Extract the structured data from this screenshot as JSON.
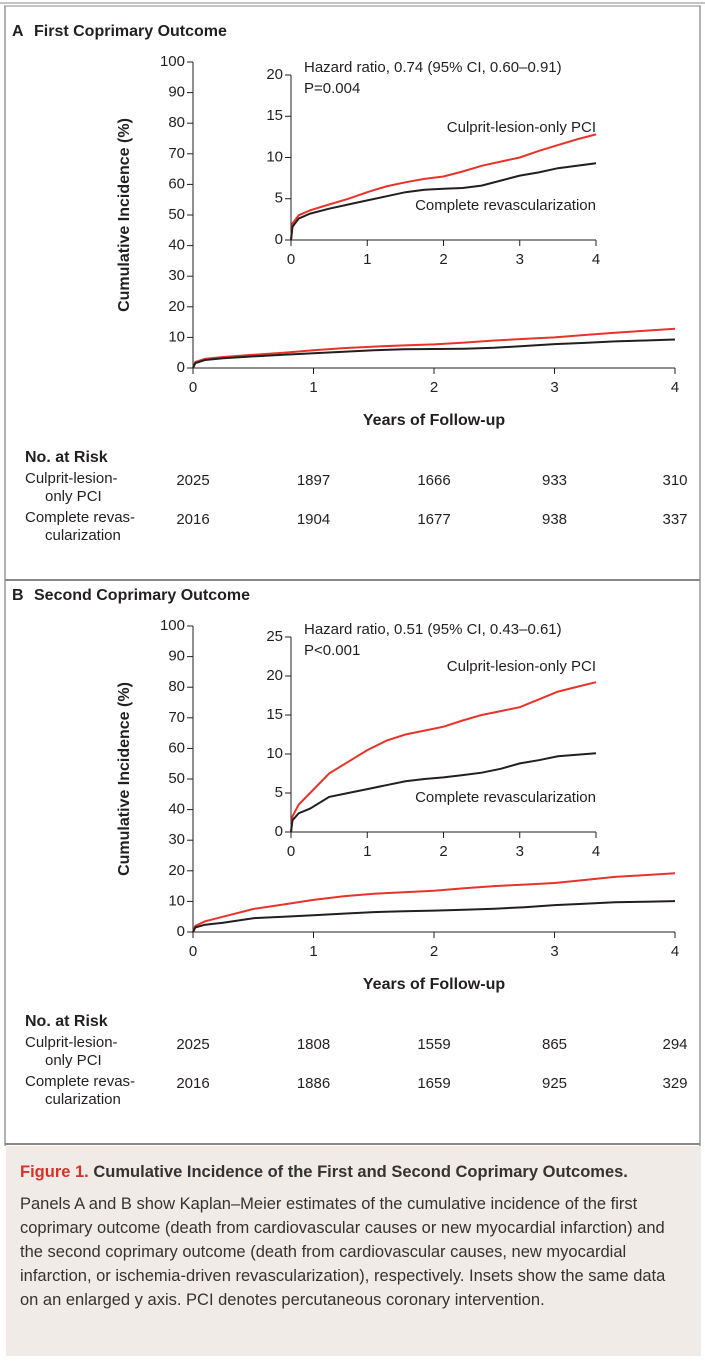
{
  "chart_data": [
    {
      "type": "line",
      "panel": "A",
      "title": "First Coprimary Outcome",
      "y_label": "Cumulative Incidence (%)",
      "x_label": "Years of Follow-up",
      "x": [
        0,
        0.02,
        0.1,
        0.25,
        0.5,
        0.75,
        1,
        1.25,
        1.5,
        1.75,
        2,
        2.25,
        2.5,
        2.75,
        3,
        3.25,
        3.5,
        3.75,
        4
      ],
      "series": [
        {
          "color": "#e8332a",
          "values": [
            0,
            2.0,
            3.0,
            3.6,
            4.3,
            5.0,
            5.8,
            6.5,
            7.0,
            7.4,
            7.7,
            8.3,
            9.0,
            9.5,
            10.0,
            10.8,
            11.5,
            12.2,
            12.8
          ]
        },
        {
          "color": "#231f20",
          "values": [
            0,
            1.6,
            2.6,
            3.2,
            3.8,
            4.3,
            4.8,
            5.3,
            5.8,
            6.1,
            6.2,
            6.3,
            6.6,
            7.2,
            7.8,
            8.2,
            8.7,
            9.0,
            9.3
          ]
        }
      ],
      "xlim": [
        0,
        4
      ],
      "xticks": [
        0,
        1,
        2,
        3,
        4
      ],
      "ylim": [
        0,
        100
      ],
      "yticks": [
        0,
        10,
        20,
        30,
        40,
        50,
        60,
        70,
        80,
        90,
        100
      ]
    },
    {
      "type": "line",
      "annotations": [
        "Hazard ratio, 0.74 (95% CI, 0.60–0.91)",
        "P=0.004"
      ],
      "x": [
        0,
        0.02,
        0.1,
        0.25,
        0.5,
        0.75,
        1,
        1.25,
        1.5,
        1.75,
        2,
        2.25,
        2.5,
        2.75,
        3,
        3.25,
        3.5,
        3.75,
        4
      ],
      "series": [
        {
          "name": "Culprit-lesion-only PCI",
          "color": "#e8332a",
          "values": [
            0,
            2.0,
            3.0,
            3.6,
            4.3,
            5.0,
            5.8,
            6.5,
            7.0,
            7.4,
            7.7,
            8.3,
            9.0,
            9.5,
            10.0,
            10.8,
            11.5,
            12.2,
            12.8
          ]
        },
        {
          "name": "Complete revascularization",
          "color": "#231f20",
          "values": [
            0,
            1.6,
            2.6,
            3.2,
            3.8,
            4.3,
            4.8,
            5.3,
            5.8,
            6.1,
            6.2,
            6.3,
            6.6,
            7.2,
            7.8,
            8.2,
            8.7,
            9.0,
            9.3
          ]
        }
      ],
      "xlim": [
        0,
        4
      ],
      "xticks": [
        0,
        1,
        2,
        3,
        4
      ],
      "ylim": [
        0,
        20
      ],
      "yticks": [
        0,
        5,
        10,
        15,
        20
      ]
    },
    {
      "type": "line",
      "panel": "B",
      "title": "Second Coprimary Outcome",
      "y_label": "Cumulative Incidence (%)",
      "x_label": "Years of Follow-up",
      "x": [
        0,
        0.02,
        0.1,
        0.25,
        0.5,
        0.75,
        1,
        1.25,
        1.5,
        1.75,
        2,
        2.25,
        2.5,
        2.75,
        3,
        3.25,
        3.5,
        3.75,
        4
      ],
      "series": [
        {
          "color": "#e8332a",
          "values": [
            0,
            2.0,
            3.5,
            5.0,
            7.5,
            9.0,
            10.5,
            11.7,
            12.5,
            13.0,
            13.5,
            14.3,
            15.0,
            15.5,
            16.0,
            17.0,
            18.0,
            18.6,
            19.2
          ]
        },
        {
          "color": "#231f20",
          "values": [
            0,
            1.5,
            2.4,
            3.0,
            4.5,
            5.0,
            5.5,
            6.0,
            6.5,
            6.8,
            7.0,
            7.3,
            7.6,
            8.1,
            8.8,
            9.2,
            9.7,
            9.9,
            10.1
          ]
        }
      ],
      "xlim": [
        0,
        4
      ],
      "xticks": [
        0,
        1,
        2,
        3,
        4
      ],
      "ylim": [
        0,
        100
      ],
      "yticks": [
        0,
        10,
        20,
        30,
        40,
        50,
        60,
        70,
        80,
        90,
        100
      ]
    },
    {
      "type": "line",
      "annotations": [
        "Hazard ratio, 0.51 (95% CI, 0.43–0.61)",
        "P<0.001"
      ],
      "x": [
        0,
        0.02,
        0.1,
        0.25,
        0.5,
        0.75,
        1,
        1.25,
        1.5,
        1.75,
        2,
        2.25,
        2.5,
        2.75,
        3,
        3.25,
        3.5,
        3.75,
        4
      ],
      "series": [
        {
          "name": "Culprit-lesion-only PCI",
          "color": "#e8332a",
          "values": [
            0,
            2.0,
            3.5,
            5.0,
            7.5,
            9.0,
            10.5,
            11.7,
            12.5,
            13.0,
            13.5,
            14.3,
            15.0,
            15.5,
            16.0,
            17.0,
            18.0,
            18.6,
            19.2
          ]
        },
        {
          "name": "Complete revascularization",
          "color": "#231f20",
          "values": [
            0,
            1.5,
            2.4,
            3.0,
            4.5,
            5.0,
            5.5,
            6.0,
            6.5,
            6.8,
            7.0,
            7.3,
            7.6,
            8.1,
            8.8,
            9.2,
            9.7,
            9.9,
            10.1
          ]
        }
      ],
      "xlim": [
        0,
        4
      ],
      "xticks": [
        0,
        1,
        2,
        3,
        4
      ],
      "ylim": [
        0,
        25
      ],
      "yticks": [
        0,
        5,
        10,
        15,
        20,
        25
      ]
    }
  ],
  "risk_tables": [
    {
      "title": "No. at Risk",
      "rows": [
        {
          "label": [
            "Culprit-lesion-",
            "only PCI"
          ],
          "values": [
            2025,
            1897,
            1666,
            933,
            310
          ]
        },
        {
          "label": [
            "Complete revas-",
            "cularization"
          ],
          "values": [
            2016,
            1904,
            1677,
            938,
            337
          ]
        }
      ]
    },
    {
      "title": "No. at Risk",
      "rows": [
        {
          "label": [
            "Culprit-lesion-",
            "only PCI"
          ],
          "values": [
            2025,
            1808,
            1559,
            865,
            294
          ]
        },
        {
          "label": [
            "Complete revas-",
            "cularization"
          ],
          "values": [
            2016,
            1886,
            1659,
            925,
            329
          ]
        }
      ]
    }
  ],
  "caption": {
    "label": "Figure 1.",
    "title": "Cumulative Incidence of the First and Second Coprimary Outcomes.",
    "text": "Panels A and B show Kaplan–Meier estimates of the cumulative incidence of the first coprimary outcome (death from cardiovascular causes or new myocardial infarction) and the second coprimary outcome (death from cardiovascular causes, new myocardial infarction, or ischemia-driven revascularization), respectively. Insets show the same data on an enlarged y axis. PCI denotes percutaneous coronary intervention."
  }
}
